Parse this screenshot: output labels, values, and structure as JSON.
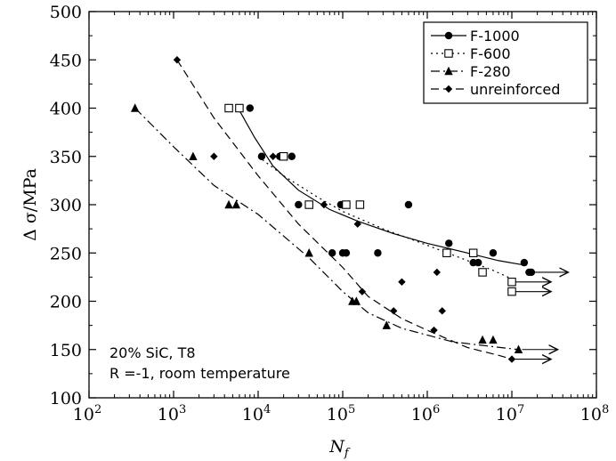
{
  "chart_data": {
    "type": "scatter",
    "title": "",
    "xlabel": "N",
    "xlabel_sub": "f",
    "ylabel": "Δ σ/MPa",
    "x_scale": "log",
    "xlim": [
      100,
      100000000
    ],
    "ylim": [
      100,
      500
    ],
    "x_ticks": [
      {
        "value": 100,
        "base": "10",
        "exp": "2"
      },
      {
        "value": 1000,
        "base": "10",
        "exp": "3"
      },
      {
        "value": 10000,
        "base": "10",
        "exp": "4"
      },
      {
        "value": 100000,
        "base": "10",
        "exp": "5"
      },
      {
        "value": 1000000,
        "base": "10",
        "exp": "6"
      },
      {
        "value": 10000000,
        "base": "10",
        "exp": "7"
      },
      {
        "value": 100000000,
        "base": "10",
        "exp": "8"
      }
    ],
    "y_ticks": [
      100,
      150,
      200,
      250,
      300,
      350,
      400,
      450,
      500
    ],
    "grid": false,
    "legend_position": "top-right",
    "annotations": [
      "20% SiC, T8",
      "R =-1, room temperature"
    ],
    "series": [
      {
        "name": "F-1000",
        "marker": "filled-circle",
        "line": "solid",
        "points": [
          [
            6000,
            400
          ],
          [
            8000,
            400
          ],
          [
            11000,
            350
          ],
          [
            18000,
            350
          ],
          [
            25000,
            350
          ],
          [
            30000,
            300
          ],
          [
            75000,
            250
          ],
          [
            95000,
            300
          ],
          [
            100000,
            250
          ],
          [
            110000,
            250
          ],
          [
            260000,
            250
          ],
          [
            600000,
            300
          ],
          [
            1800000,
            260
          ],
          [
            3500000,
            240
          ],
          [
            4000000,
            240
          ],
          [
            6000000,
            250
          ],
          [
            14000000,
            240
          ],
          [
            16000000,
            230
          ],
          [
            17000000,
            230
          ]
        ],
        "runouts": [
          [
            16000000,
            230
          ]
        ],
        "fit": [
          [
            5800,
            400
          ],
          [
            9000,
            370
          ],
          [
            15000,
            340
          ],
          [
            30000,
            315
          ],
          [
            70000,
            295
          ],
          [
            150000,
            283
          ],
          [
            400000,
            270
          ],
          [
            1000000,
            260
          ],
          [
            3000000,
            250
          ],
          [
            7000000,
            242
          ],
          [
            13000000,
            238
          ]
        ]
      },
      {
        "name": "F-600",
        "marker": "open-square",
        "line": "dotted",
        "points": [
          [
            4500,
            400
          ],
          [
            6000,
            400
          ],
          [
            20000,
            350
          ],
          [
            40000,
            300
          ],
          [
            110000,
            300
          ],
          [
            160000,
            300
          ],
          [
            1700000,
            250
          ],
          [
            3500000,
            250
          ],
          [
            4500000,
            230
          ],
          [
            10000000,
            220
          ],
          [
            10000000,
            210
          ]
        ],
        "runouts": [
          [
            10000000,
            220
          ],
          [
            10000000,
            210
          ]
        ],
        "fit": [
          [
            10000,
            350
          ],
          [
            20000,
            330
          ],
          [
            50000,
            308
          ],
          [
            100000,
            293
          ],
          [
            300000,
            275
          ],
          [
            1000000,
            258
          ],
          [
            3000000,
            242
          ],
          [
            6000000,
            232
          ],
          [
            9000000,
            225
          ],
          [
            10000000,
            222
          ]
        ]
      },
      {
        "name": "F-280",
        "marker": "filled-triangle",
        "line": "dash-dot",
        "points": [
          [
            350,
            400
          ],
          [
            1700,
            350
          ],
          [
            4500,
            300
          ],
          [
            5500,
            300
          ],
          [
            40000,
            250
          ],
          [
            130000,
            200
          ],
          [
            145000,
            200
          ],
          [
            330000,
            175
          ],
          [
            4500000,
            160
          ],
          [
            6000000,
            160
          ],
          [
            12000000,
            150
          ]
        ],
        "runouts": [
          [
            12000000,
            150
          ]
        ],
        "fit": [
          [
            350,
            400
          ],
          [
            1000,
            360
          ],
          [
            3000,
            320
          ],
          [
            10000,
            290
          ],
          [
            40000,
            245
          ],
          [
            100000,
            210
          ],
          [
            200000,
            188
          ],
          [
            500000,
            172
          ],
          [
            2000000,
            158
          ],
          [
            6000000,
            153
          ],
          [
            12000000,
            150
          ]
        ]
      },
      {
        "name": "unreinforced",
        "marker": "filled-diamond",
        "line": "dashed",
        "points": [
          [
            1100,
            450
          ],
          [
            3000,
            350
          ],
          [
            15000,
            350
          ],
          [
            60000,
            300
          ],
          [
            150000,
            280
          ],
          [
            170000,
            210
          ],
          [
            400000,
            190
          ],
          [
            500000,
            220
          ],
          [
            1200000,
            170
          ],
          [
            1300000,
            230
          ],
          [
            1500000,
            190
          ],
          [
            10000000,
            140
          ]
        ],
        "runouts": [
          [
            10000000,
            140
          ]
        ],
        "fit": [
          [
            1100,
            450
          ],
          [
            3000,
            390
          ],
          [
            10000,
            330
          ],
          [
            30000,
            280
          ],
          [
            100000,
            235
          ],
          [
            200000,
            205
          ],
          [
            500000,
            182
          ],
          [
            1000000,
            170
          ],
          [
            3000000,
            152
          ],
          [
            7000000,
            144
          ],
          [
            10000000,
            140
          ]
        ]
      }
    ]
  }
}
